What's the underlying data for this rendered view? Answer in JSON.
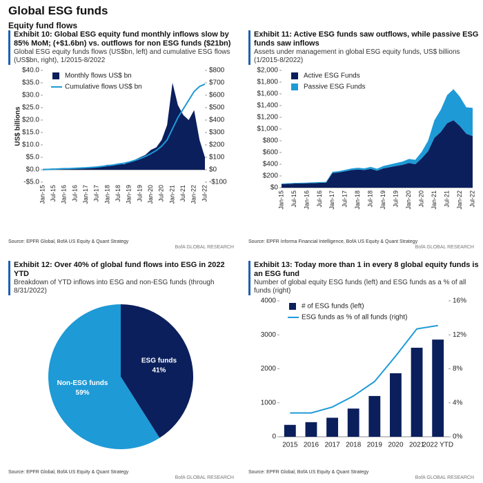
{
  "header": {
    "title": "Global ESG funds",
    "subtitle": "Equity fund flows"
  },
  "chart_data": [
    {
      "type": "combo",
      "title": "Exhibit 10: Global ESG equity fund monthly inflows slow by 85% MoM; (+$1.6bn) vs. outflows for non ESG funds ($21bn)",
      "subtitle": "Global ESG equity funds flows (US$bn, left) and cumulative ESG flows (US$bn, right), 1/2015-8/2022",
      "ylabel": "US$ billions",
      "categories": [
        "Jan-15",
        null,
        "Jul-15",
        null,
        "Jan-16",
        null,
        "Jul-16",
        null,
        "Jan-17",
        null,
        "Jul-17",
        null,
        "Jan-18",
        null,
        "Jul-18",
        null,
        "Jan-19",
        null,
        "Jul-19",
        null,
        "Jan-20",
        null,
        "Jul-20",
        null,
        "Jan-21",
        null,
        "Jul-21",
        null,
        "Jan-22",
        null,
        "Jul-22"
      ],
      "series": [
        {
          "name": "Monthly flows US$ bn",
          "type": "area",
          "color": "#0b1f5c",
          "values": [
            0.3,
            0.4,
            0.5,
            0.4,
            0.3,
            0.5,
            0.6,
            0.8,
            0.7,
            1.0,
            1.2,
            1.5,
            2.0,
            1.8,
            2.5,
            2.2,
            3.0,
            4.0,
            5.0,
            6.0,
            8.0,
            9.0,
            12.0,
            18.0,
            35.0,
            26.0,
            22.0,
            20.0,
            24.0,
            12.0,
            5.0
          ]
        },
        {
          "name": "Cumulative flows US$ bn",
          "type": "line",
          "axis": "y2",
          "color": "#1e9ad6",
          "values": [
            1,
            3,
            5,
            7,
            9,
            10,
            12,
            14,
            16,
            19,
            22,
            27,
            33,
            38,
            46,
            52,
            62,
            75,
            90,
            108,
            130,
            155,
            190,
            240,
            330,
            420,
            490,
            560,
            630,
            670,
            690
          ]
        }
      ],
      "ylim": [
        -5,
        40
      ],
      "yticks": [
        {
          "value": -5,
          "label": "-$5.0"
        },
        {
          "value": 0,
          "label": "$0.0"
        },
        {
          "value": 5,
          "label": "$5.0"
        },
        {
          "value": 10,
          "label": "$10.0"
        },
        {
          "value": 15,
          "label": "$15.0"
        },
        {
          "value": 20,
          "label": "$20.0"
        },
        {
          "value": 25,
          "label": "$25.0"
        },
        {
          "value": 30,
          "label": "$30.0"
        },
        {
          "value": 35,
          "label": "$35.0"
        },
        {
          "value": 40,
          "label": "$40.0"
        }
      ],
      "y2lim": [
        -100,
        800
      ],
      "y2ticks": [
        {
          "value": -100,
          "label": "-$100"
        },
        {
          "value": 0,
          "label": "$0"
        },
        {
          "value": 100,
          "label": "$100"
        },
        {
          "value": 200,
          "label": "$200"
        },
        {
          "value": 300,
          "label": "$300"
        },
        {
          "value": 400,
          "label": "$400"
        },
        {
          "value": 500,
          "label": "$500"
        },
        {
          "value": 600,
          "label": "$600"
        },
        {
          "value": 700,
          "label": "$700"
        },
        {
          "value": 800,
          "label": "$800"
        }
      ],
      "source": "Source: EPFR Global, BofA US Equity & Quant Strategy",
      "credit": "BofA GLOBAL RESEARCH"
    },
    {
      "type": "area",
      "stacked": true,
      "title": "Exhibit 11: Active ESG funds saw outflows, while passive ESG funds saw inflows",
      "subtitle": "Assets under management in global ESG equity funds, US$ billions (1/2015-8/2022)",
      "categories": [
        "Jan-15",
        null,
        "Jul-15",
        null,
        "Jan-16",
        null,
        "Jul-16",
        null,
        "Jan-17",
        null,
        "Jul-17",
        null,
        "Jan-18",
        null,
        "Jul-18",
        null,
        "Jan-19",
        null,
        "Jul-19",
        null,
        "Jan-20",
        null,
        "Jul-20",
        null,
        "Jan-21",
        null,
        "Jul-21",
        null,
        "Jan-22",
        null,
        "Jul-22"
      ],
      "series": [
        {
          "name": "Active ESG Funds",
          "type": "area",
          "color": "#0b1f5c",
          "values": [
            60,
            65,
            70,
            72,
            75,
            78,
            82,
            85,
            250,
            260,
            280,
            300,
            310,
            300,
            320,
            290,
            330,
            350,
            370,
            390,
            420,
            400,
            500,
            620,
            850,
            950,
            1100,
            1150,
            1050,
            920,
            880
          ]
        },
        {
          "name": "Passive ESG Funds",
          "type": "area",
          "color": "#1e9ad6",
          "values": [
            10,
            10,
            11,
            12,
            12,
            13,
            14,
            15,
            20,
            22,
            25,
            28,
            30,
            30,
            35,
            33,
            40,
            45,
            50,
            55,
            70,
            75,
            110,
            180,
            300,
            380,
            480,
            530,
            500,
            450,
            480
          ]
        }
      ],
      "ylim": [
        0,
        2000
      ],
      "yticks": [
        {
          "value": 0,
          "label": "$0"
        },
        {
          "value": 200,
          "label": "$200"
        },
        {
          "value": 400,
          "label": "$400"
        },
        {
          "value": 600,
          "label": "$600"
        },
        {
          "value": 800,
          "label": "$800"
        },
        {
          "value": 1000,
          "label": "$1,000"
        },
        {
          "value": 1200,
          "label": "$1,200"
        },
        {
          "value": 1400,
          "label": "$1,400"
        },
        {
          "value": 1600,
          "label": "$1,600"
        },
        {
          "value": 1800,
          "label": "$1,800"
        },
        {
          "value": 2000,
          "label": "$2,000"
        }
      ],
      "source": "Source: EPFR Informa Financial Intelligence, BofA US Equity & Quant Strategy",
      "credit": "BofA GLOBAL RESEARCH"
    },
    {
      "type": "pie",
      "title": "Exhibit 12: Over 40% of global fund flows into ESG in 2022 YTD",
      "subtitle": "Breakdown of YTD inflows into ESG and non-ESG funds (through 8/31/2022)",
      "categories": [
        "ESG funds",
        "Non-ESG funds"
      ],
      "values": [
        41,
        59
      ],
      "value_labels": [
        "41%",
        "59%"
      ],
      "colors": [
        "#0b1f5c",
        "#1e9ad6"
      ],
      "source": "Source: EPFR Global, BofA US Equity & Quant Strategy",
      "credit": "BofA GLOBAL RESEARCH"
    },
    {
      "type": "combo",
      "title": "Exhibit 13: Today more than 1 in every 8 global equity funds is an ESG fund",
      "subtitle": "Number of global equity ESG funds (left) and ESG funds as a % of all funds (right)",
      "categories": [
        "2015",
        "2016",
        "2017",
        "2018",
        "2019",
        "2020",
        "2021",
        "2022 YTD"
      ],
      "series": [
        {
          "name": "# of ESG funds (left)",
          "type": "bar",
          "color": "#0b1f5c",
          "values": [
            350,
            430,
            560,
            830,
            1200,
            1870,
            2620,
            2860
          ]
        },
        {
          "name": "ESG funds as % of all funds (right)",
          "type": "line",
          "axis": "y2",
          "color": "#1e9ad6",
          "values": [
            2.8,
            2.8,
            3.5,
            4.8,
            6.5,
            9.5,
            12.7,
            13.1
          ]
        }
      ],
      "ylim": [
        0,
        4000
      ],
      "yticks": [
        0,
        1000,
        2000,
        3000,
        4000
      ],
      "y2lim": [
        0,
        16
      ],
      "y2ticks": [
        {
          "value": 0,
          "label": "0%"
        },
        {
          "value": 4,
          "label": "4%"
        },
        {
          "value": 8,
          "label": "8%"
        },
        {
          "value": 12,
          "label": "12%"
        },
        {
          "value": 16,
          "label": "16%"
        }
      ],
      "source": "Source: EPFR Global, BofA US Equity & Quant Strategy",
      "credit": "BofA GLOBAL RESEARCH"
    }
  ]
}
